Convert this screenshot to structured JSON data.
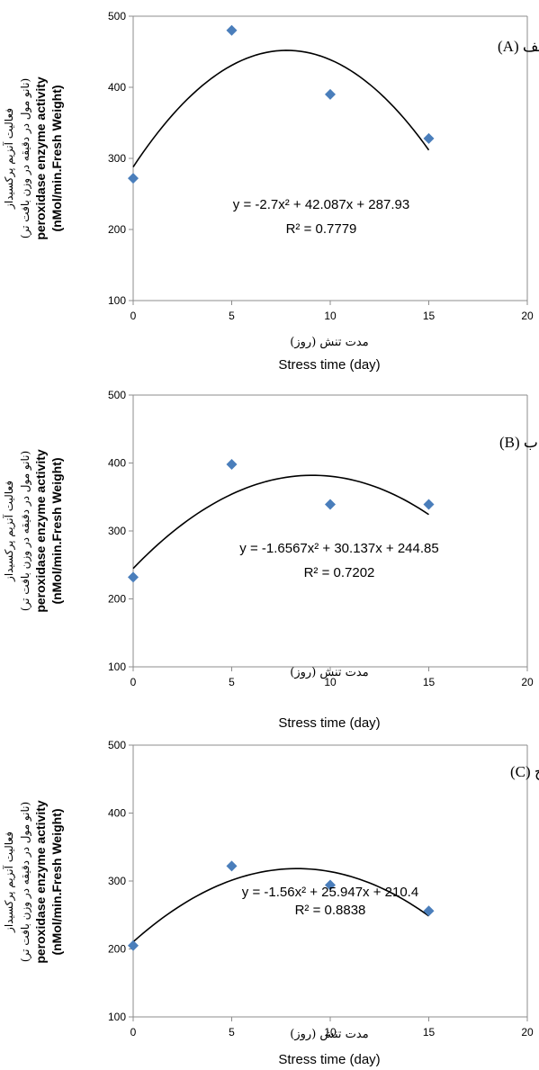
{
  "chart_data": [
    {
      "type": "scatter",
      "panel_label": "الف (A)",
      "xlabel_fa": "مدت تنش (روز)",
      "xlabel": "Stress time (day)",
      "ylabel_fa_line1": "فعالیت آنزیم پرکسیداز",
      "ylabel_fa_line2": "(نانو مول در دقیقه در وزن بافت تر)",
      "ylabel_line1": "peroxidase enzyme activity",
      "ylabel_line2": "(nMol/min.Fresh Weight)",
      "xlim": [
        0,
        20
      ],
      "ylim": [
        100,
        500
      ],
      "xticks": [
        "0",
        "5",
        "10",
        "15",
        "20"
      ],
      "yticks": [
        "100",
        "200",
        "300",
        "400",
        "500"
      ],
      "x": [
        0,
        5,
        10,
        15
      ],
      "y": [
        272,
        480,
        390,
        328
      ],
      "trendline": {
        "type": "polynomial",
        "order": 2,
        "a": -2.7,
        "b": 42.087,
        "c": 287.93,
        "x_range": [
          0,
          15
        ]
      },
      "equation": "y = -2.7x² + 42.087x + 287.93",
      "r2": "R² = 0.7779",
      "grid": false,
      "marker_color": "#4a7ebb"
    },
    {
      "type": "scatter",
      "panel_label": "ب (B)",
      "xlabel_fa": "مدت تنش (روز)",
      "xlabel": "Stress time (day)",
      "ylabel_fa_line1": "فعالیت آنزیم پرکسیداز",
      "ylabel_fa_line2": "(نانو مول در دقیقه در وزن بافت تر)",
      "ylabel_line1": "peroxidase enzyme activity",
      "ylabel_line2": "(nMol/min.Fresh Weight)",
      "xlim": [
        0,
        20
      ],
      "ylim": [
        100,
        500
      ],
      "xticks": [
        "0",
        "5",
        "10",
        "15",
        "20"
      ],
      "yticks": [
        "100",
        "200",
        "300",
        "400",
        "500"
      ],
      "x": [
        0,
        5,
        10,
        15
      ],
      "y": [
        232,
        398,
        339,
        339
      ],
      "trendline": {
        "type": "polynomial",
        "order": 2,
        "a": -1.6567,
        "b": 30.137,
        "c": 244.85,
        "x_range": [
          0,
          15
        ]
      },
      "equation": "y = -1.6567x² + 30.137x + 244.85",
      "r2": "R² = 0.7202",
      "grid": false,
      "marker_color": "#4a7ebb"
    },
    {
      "type": "scatter",
      "panel_label": "ج (C)",
      "xlabel_fa": "مدت تنش (روز)",
      "xlabel": "Stress time (day)",
      "ylabel_fa_line1": "فعالیت آنزیم پرکسیداز",
      "ylabel_fa_line2": "(نانو مول در دقیقه در وزن بافت تر)",
      "ylabel_line1": "peroxidase enzyme activity",
      "ylabel_line2": "(nMol/min.Fresh Weight)",
      "xlim": [
        0,
        20
      ],
      "ylim": [
        100,
        500
      ],
      "xticks": [
        "0",
        "5",
        "10",
        "15",
        "20"
      ],
      "yticks": [
        "100",
        "200",
        "300",
        "400",
        "500"
      ],
      "x": [
        0,
        5,
        10,
        15
      ],
      "y": [
        205,
        322,
        294,
        256
      ],
      "trendline": {
        "type": "polynomial",
        "order": 2,
        "a": -1.56,
        "b": 25.947,
        "c": 210.4,
        "x_range": [
          0,
          15
        ]
      },
      "equation": "y = -1.56x² + 25.947x + 210.4",
      "r2": "R² = 0.8838",
      "grid": false,
      "marker_color": "#4a7ebb"
    }
  ]
}
